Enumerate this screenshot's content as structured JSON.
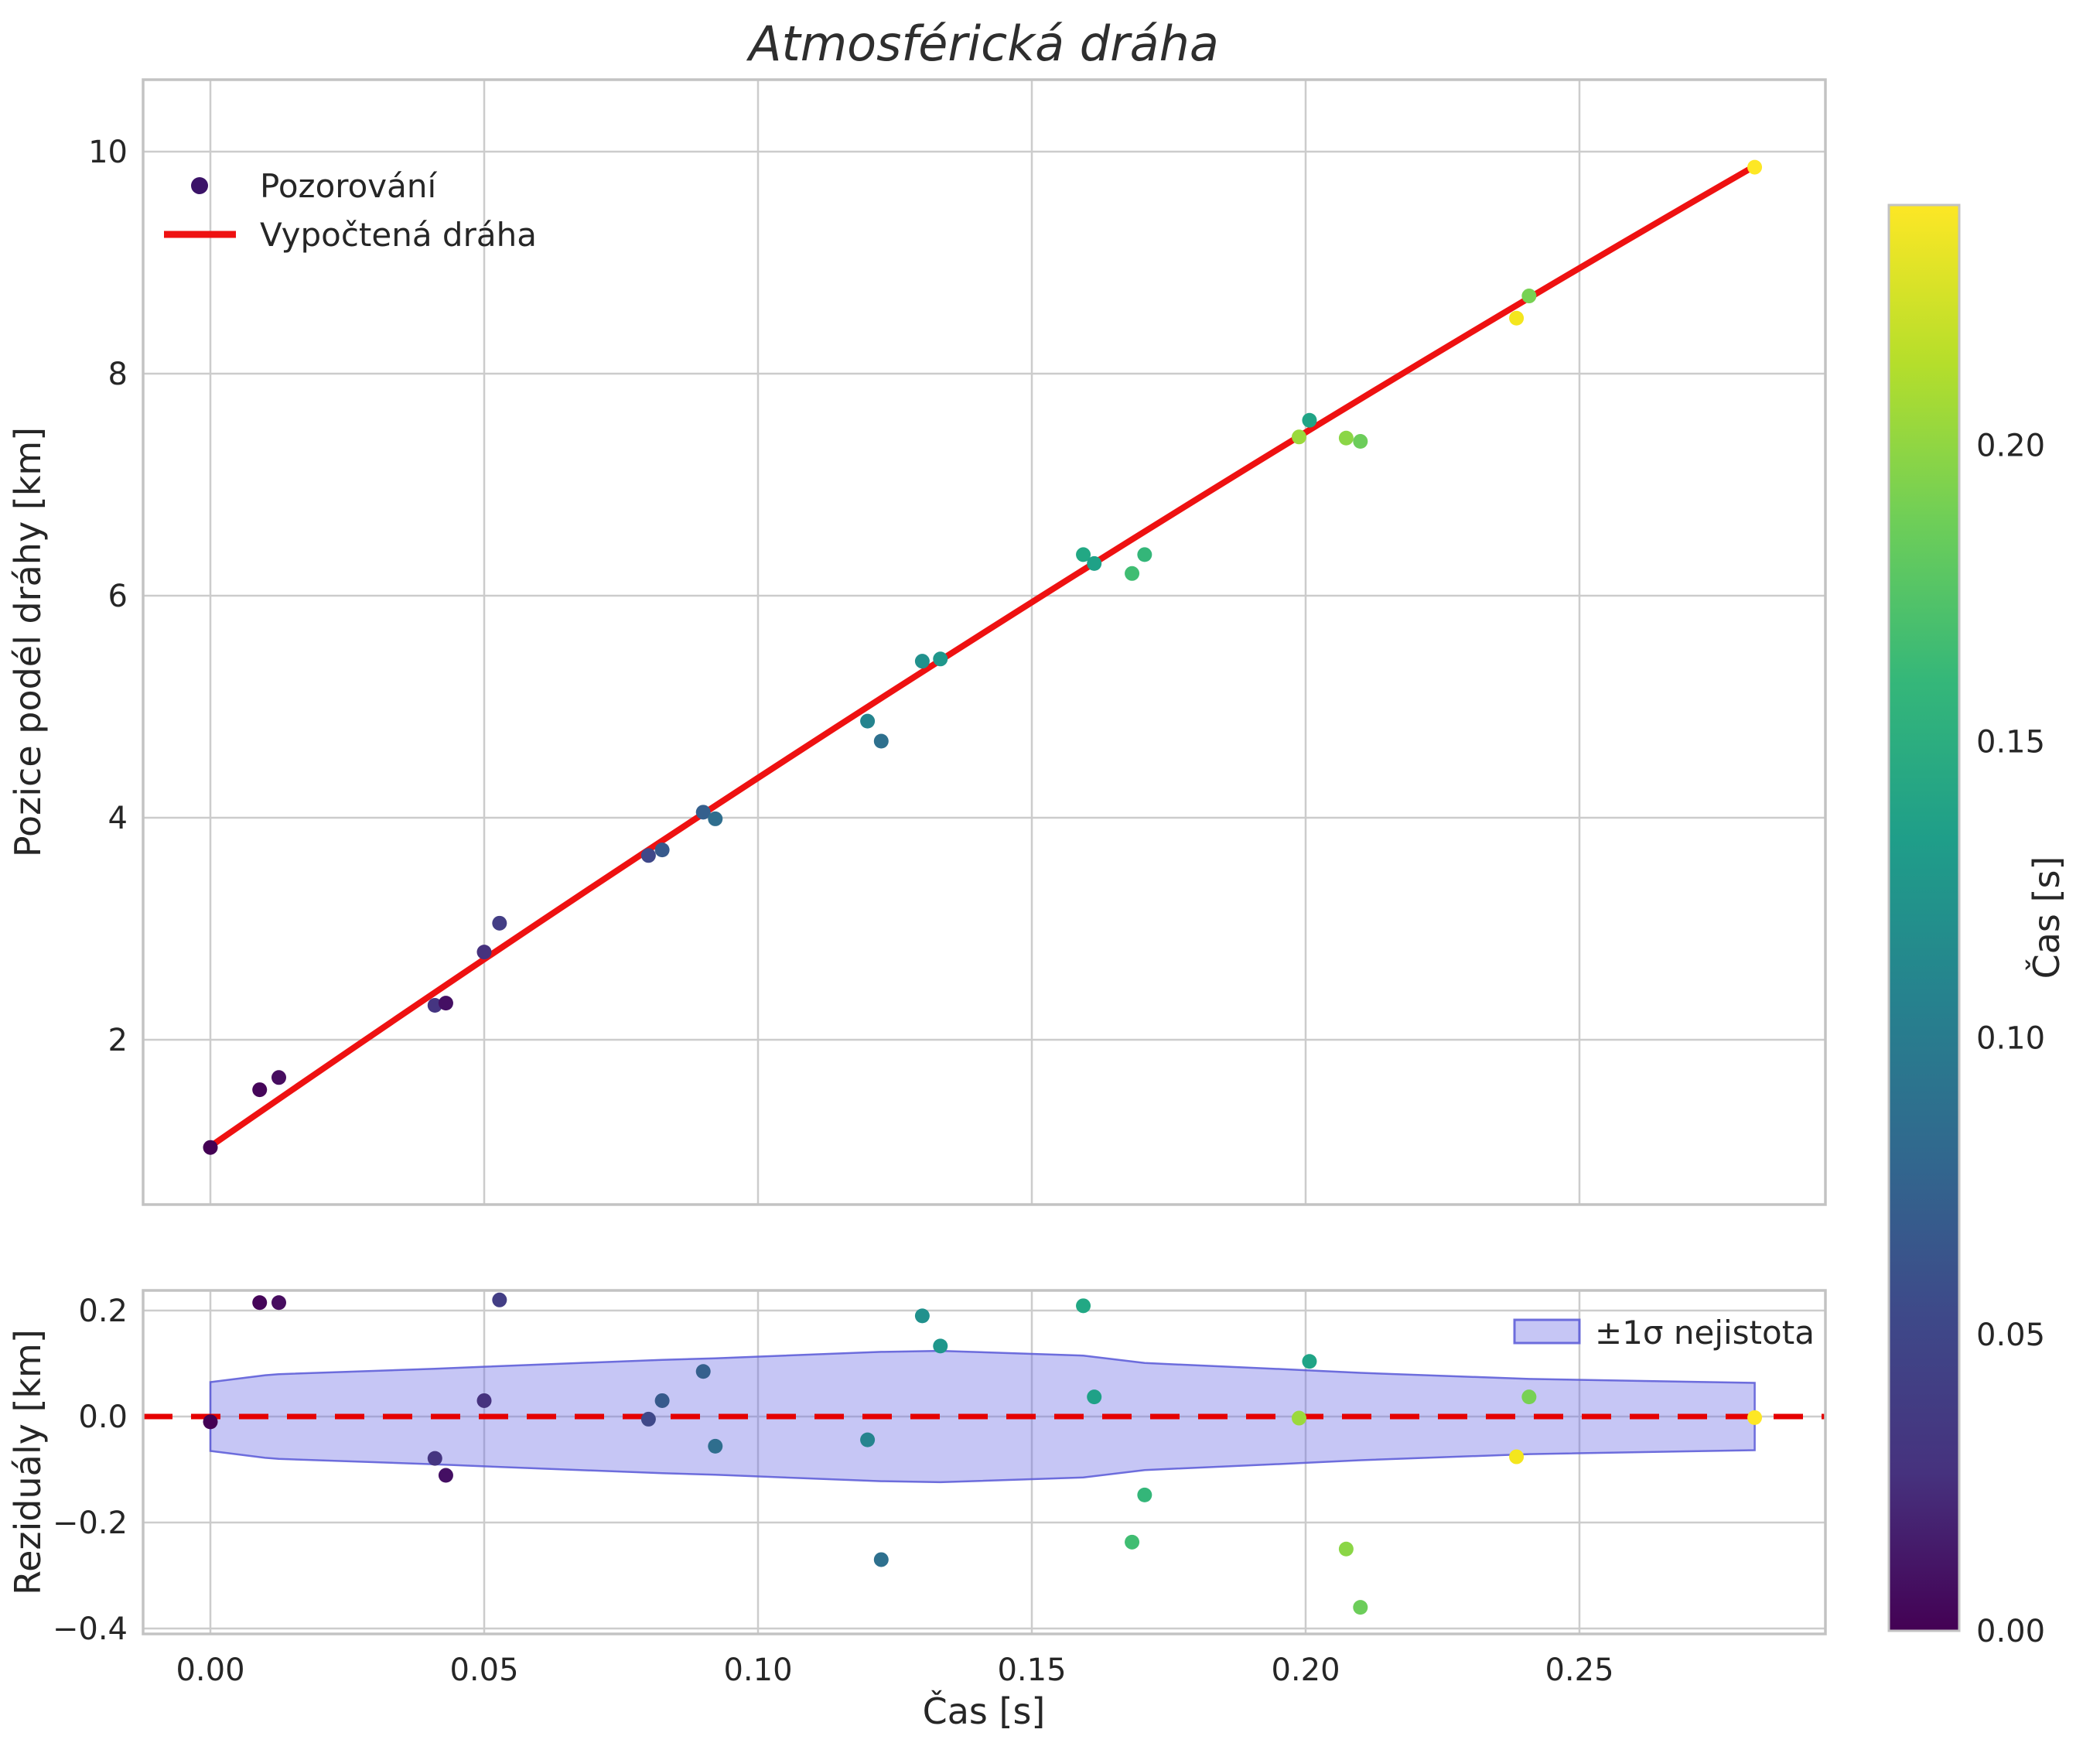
{
  "title": "Atmosférická dráha",
  "main": {
    "ylabel": "Pozice podél dráhy [km]",
    "legend": {
      "observations": "Pozorování",
      "fitted": "Vypočtená dráha"
    }
  },
  "residual": {
    "ylabel": "Reziduály [km]",
    "legend_band": "±1σ nejistota"
  },
  "xaxis": {
    "label": "Čas [s]"
  },
  "colorbar_label": "Čas [s]",
  "colors": {
    "fit_line": "#ee1111",
    "zero_line": "#e50000",
    "band_fill": "rgba(105,105,230,0.38)",
    "band_edge": "rgba(88,88,215,0.85)",
    "grid": "#cccccc",
    "spine": "#c3c3c3",
    "tick_text": "#262626",
    "legend_dot": "#3b1368"
  },
  "chart_data": {
    "type": "scatter",
    "title": "Atmosférická dráha",
    "xlabel": "Čas [s]",
    "xlim": [
      -0.0123,
      0.295
    ],
    "xticks": {
      "values": [
        0.0,
        0.05,
        0.1,
        0.15,
        0.2,
        0.25
      ],
      "labels": [
        "0.00",
        "0.05",
        "0.10",
        "0.15",
        "0.20",
        "0.25"
      ]
    },
    "subplot_main": {
      "ylabel": "Pozice podél dráhy [km]",
      "ylim": [
        0.51,
        10.67
      ],
      "yticks": {
        "values": [
          2,
          4,
          6,
          8,
          10
        ],
        "labels": [
          "2",
          "4",
          "6",
          "8",
          "10"
        ]
      },
      "fit_line": {
        "label": "Vypočtená dráha",
        "t_start": 0.0,
        "s_start": 1.04,
        "t_end": 0.282,
        "s_end": 9.87,
        "s_mid": 5.66
      },
      "points_label": "Pozorování"
    },
    "subplot_residual": {
      "ylabel": "Reziduály [km]",
      "ylim": [
        -0.41,
        0.238
      ],
      "yticks": {
        "values": [
          0.2,
          0.0,
          -0.2,
          -0.4
        ],
        "labels": [
          "0.2",
          "0.0",
          "−0.2",
          "−0.4"
        ]
      },
      "zero_line": 0.0,
      "band": {
        "label": "±1σ nejistota",
        "t": [
          0.0,
          0.01,
          0.0125,
          0.041,
          0.05,
          0.0825,
          0.0922,
          0.1225,
          0.1333,
          0.1594,
          0.1706,
          0.1988,
          0.21,
          0.2408,
          0.282
        ],
        "sigma": [
          0.065,
          0.078,
          0.08,
          0.09,
          0.094,
          0.107,
          0.11,
          0.122,
          0.124,
          0.115,
          0.101,
          0.088,
          0.0825,
          0.071,
          0.0635
        ]
      }
    },
    "points": [
      {
        "t": 0.0,
        "s": 1.03,
        "resid": -0.01,
        "color": "#440154"
      },
      {
        "t": 0.009,
        "s": 1.55,
        "resid": 0.215,
        "color": "#450559"
      },
      {
        "t": 0.0125,
        "s": 1.66,
        "resid": 0.215,
        "color": "#470d60"
      },
      {
        "t": 0.041,
        "s": 2.31,
        "resid": -0.079,
        "color": "#453581"
      },
      {
        "t": 0.043,
        "s": 2.33,
        "resid": -0.111,
        "color": "#440f63"
      },
      {
        "t": 0.05,
        "s": 2.79,
        "resid": 0.03,
        "color": "#46327e"
      },
      {
        "t": 0.0528,
        "s": 3.05,
        "resid": 0.22,
        "color": "#433e85"
      },
      {
        "t": 0.08,
        "s": 3.66,
        "resid": -0.005,
        "color": "#3f4889"
      },
      {
        "t": 0.0825,
        "s": 3.71,
        "resid": 0.03,
        "color": "#375a8c"
      },
      {
        "t": 0.09,
        "s": 4.05,
        "resid": 0.085,
        "color": "#35608d"
      },
      {
        "t": 0.0922,
        "s": 3.99,
        "resid": -0.056,
        "color": "#2f6e8e"
      },
      {
        "t": 0.12,
        "s": 4.87,
        "resid": -0.044,
        "color": "#25848e"
      },
      {
        "t": 0.1225,
        "s": 4.69,
        "resid": -0.27,
        "color": "#2e708e"
      },
      {
        "t": 0.13,
        "s": 5.41,
        "resid": 0.19,
        "color": "#21918d"
      },
      {
        "t": 0.1333,
        "s": 5.43,
        "resid": 0.133,
        "color": "#1f978b"
      },
      {
        "t": 0.1594,
        "s": 6.37,
        "resid": 0.209,
        "color": "#22a884"
      },
      {
        "t": 0.1614,
        "s": 6.29,
        "resid": 0.037,
        "color": "#1fa187"
      },
      {
        "t": 0.1683,
        "s": 6.2,
        "resid": -0.237,
        "color": "#40bd72"
      },
      {
        "t": 0.1706,
        "s": 6.37,
        "resid": -0.148,
        "color": "#34b679"
      },
      {
        "t": 0.1988,
        "s": 7.43,
        "resid": -0.003,
        "color": "#9bd93c"
      },
      {
        "t": 0.2007,
        "s": 7.58,
        "resid": 0.104,
        "color": "#20a486"
      },
      {
        "t": 0.2074,
        "s": 7.42,
        "resid": -0.25,
        "color": "#8bd646"
      },
      {
        "t": 0.21,
        "s": 7.39,
        "resid": -0.36,
        "color": "#6ccd5a"
      },
      {
        "t": 0.2385,
        "s": 8.5,
        "resid": -0.076,
        "color": "#f4e61e"
      },
      {
        "t": 0.2408,
        "s": 8.7,
        "resid": 0.037,
        "color": "#77d153"
      },
      {
        "t": 0.282,
        "s": 9.86,
        "resid": -0.002,
        "color": "#fde725"
      }
    ],
    "colorbar": {
      "label": "Čas [s]",
      "vmin": 0.0,
      "vmax": 0.2405,
      "ticks": {
        "values": [
          0.0,
          0.05,
          0.1,
          0.15,
          0.2
        ],
        "labels": [
          "0.00",
          "0.05",
          "0.10",
          "0.15",
          "0.20"
        ]
      },
      "colormap": "viridis",
      "gradient": [
        "#440154",
        "#46327e",
        "#3e4989",
        "#31688e",
        "#26828e",
        "#1f9e89",
        "#35b779",
        "#6ece58",
        "#b5de2b",
        "#fde725"
      ]
    },
    "grid": true,
    "legend_position_main": "upper left",
    "legend_position_residual": "upper right"
  }
}
